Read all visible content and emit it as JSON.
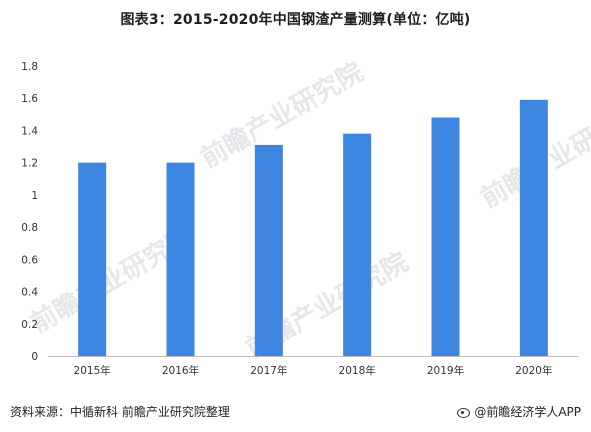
{
  "header": {
    "title": "图表3：2015-2020年中国钢渣产量测算(单位：亿吨)"
  },
  "watermarks": [
    "前瞻产业研究院",
    "前瞻产业研究院",
    "前瞻产业研究院",
    "前瞻产业研究院"
  ],
  "footer": {
    "source_label": "资料来源：",
    "source_text": "中循新科 前瞻产业研究院整理",
    "brand": "@前瞻经济学人APP"
  },
  "colors": {
    "bar": "#3d86e1",
    "axis": "#bfbfbf",
    "watermark": "#b4b9c3"
  },
  "chart_data": {
    "type": "bar",
    "title": "图表3：2015-2020年中国钢渣产量测算(单位：亿吨)",
    "categories": [
      "2015年",
      "2016年",
      "2017年",
      "2018年",
      "2019年",
      "2020年"
    ],
    "values": [
      1.2,
      1.2,
      1.31,
      1.38,
      1.48,
      1.59
    ],
    "ylim": [
      0,
      1.8
    ],
    "yticks": [
      0,
      0.2,
      0.4,
      0.6,
      0.8,
      1,
      1.2,
      1.4,
      1.6,
      1.8
    ],
    "ytick_labels": [
      "0",
      "0.2",
      "0.4",
      "0.6",
      "0.8",
      "1",
      "1.2",
      "1.4",
      "1.6",
      "1.8"
    ],
    "xlabel": "",
    "ylabel": "",
    "grid": false,
    "legend": "none"
  }
}
